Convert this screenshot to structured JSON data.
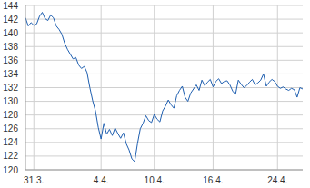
{
  "chart_data": {
    "type": "line",
    "categories": [
      null,
      null,
      null,
      "31.3.",
      null,
      null,
      null,
      null,
      null,
      null,
      null,
      null,
      null,
      null,
      null,
      null,
      null,
      null,
      null,
      null,
      null,
      null,
      null,
      null,
      null,
      null,
      null,
      "4.4.",
      null,
      null,
      null,
      null,
      null,
      null,
      null,
      null,
      null,
      null,
      null,
      null,
      null,
      null,
      null,
      null,
      null,
      null,
      "10.4.",
      null,
      null,
      null,
      null,
      null,
      null,
      null,
      null,
      null,
      null,
      null,
      null,
      null,
      null,
      null,
      null,
      null,
      null,
      null,
      null,
      "16.4.",
      null,
      null,
      null,
      null,
      null,
      null,
      null,
      null,
      null,
      null,
      null,
      null,
      null,
      null,
      null,
      null,
      null,
      null,
      null,
      null,
      null,
      null,
      "24.4.",
      null,
      null,
      null,
      null,
      null,
      null,
      null,
      null,
      null
    ],
    "values": [
      142.2,
      141.0,
      141.5,
      141.1,
      141.3,
      142.4,
      143.0,
      142.1,
      141.8,
      142.6,
      142.2,
      141.0,
      140.5,
      139.8,
      138.5,
      137.6,
      136.9,
      136.2,
      136.4,
      135.3,
      134.8,
      135.1,
      134.2,
      132.0,
      130.1,
      128.6,
      126.2,
      124.5,
      126.8,
      125.2,
      125.9,
      125.0,
      126.1,
      125.3,
      124.6,
      125.4,
      123.8,
      122.9,
      121.6,
      121.2,
      123.8,
      126.0,
      126.8,
      127.9,
      127.2,
      126.9,
      128.1,
      127.4,
      127.0,
      128.6,
      129.3,
      130.2,
      129.5,
      129.0,
      130.8,
      131.6,
      132.2,
      130.6,
      130.0,
      131.2,
      131.8,
      132.4,
      131.6,
      133.1,
      132.3,
      132.8,
      133.2,
      132.1,
      132.9,
      133.3,
      132.6,
      132.9,
      133.0,
      132.4,
      131.5,
      131.0,
      133.1,
      132.5,
      132.0,
      132.3,
      132.8,
      133.2,
      132.4,
      132.7,
      133.1,
      134.0,
      132.2,
      132.8,
      133.2,
      132.9,
      132.2,
      131.9,
      132.1,
      131.8,
      131.6,
      131.9,
      131.7,
      130.6,
      132.0,
      131.8
    ],
    "color": "#1f5fb0",
    "ylim": [
      120,
      144
    ],
    "yticks": [
      120,
      122,
      124,
      126,
      128,
      130,
      132,
      134,
      136,
      138,
      140,
      142,
      144
    ],
    "grid": true
  }
}
